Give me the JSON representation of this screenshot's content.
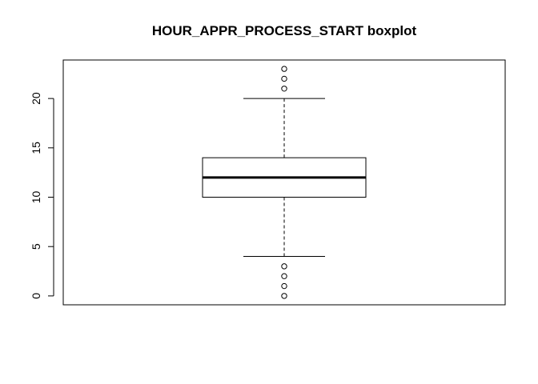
{
  "chart_data": {
    "type": "boxplot",
    "title": "HOUR_APPR_PROCESS_START boxplot",
    "xlabel": "",
    "ylabel": "",
    "ylim": [
      -0.9,
      23.9
    ],
    "yticks": [
      0,
      5,
      10,
      15,
      20
    ],
    "ytick_labels": [
      "0",
      "5",
      "10",
      "15",
      "20"
    ],
    "grid": false,
    "box": {
      "whisker_low": 4,
      "q1": 10,
      "median": 12,
      "q3": 14,
      "whisker_high": 20
    },
    "outliers": [
      0,
      1,
      2,
      3,
      21,
      22,
      23
    ]
  }
}
